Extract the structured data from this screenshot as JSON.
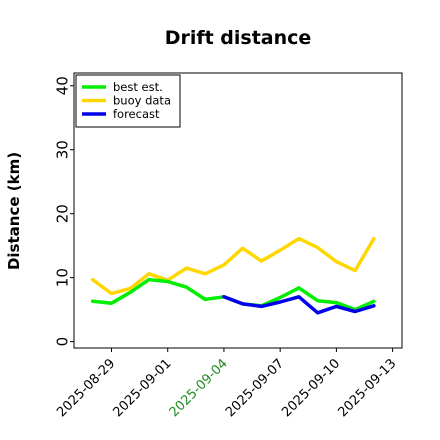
{
  "chart_data": {
    "type": "line",
    "title": "Drift distance",
    "xlabel": "",
    "ylabel": "Distance (km)",
    "ylim": [
      -1,
      42
    ],
    "yticks": [
      "0",
      "10",
      "20",
      "30",
      "40"
    ],
    "xlim": [
      "2025-08-27",
      "2025-09-13T12:00"
    ],
    "xticks": [
      "2025-08-29",
      "2025-09-01",
      "2025-09-04",
      "2025-09-07",
      "2025-09-10",
      "2025-09-13"
    ],
    "highlight_tick": "2025-09-04",
    "highlight_color": "#228B22",
    "legend_position": "top-left",
    "grid": false,
    "series": [
      {
        "name": "best est.",
        "color": "#00ee00",
        "x": [
          "2025-08-28",
          "2025-08-29",
          "2025-08-30",
          "2025-08-31",
          "2025-09-01",
          "2025-09-02",
          "2025-09-03",
          "2025-09-04",
          "2025-09-05",
          "2025-09-06",
          "2025-09-07",
          "2025-09-08",
          "2025-09-09",
          "2025-09-10",
          "2025-09-11",
          "2025-09-12"
        ],
        "values": [
          6.3,
          6.0,
          7.7,
          9.7,
          9.4,
          8.5,
          6.6,
          7.0,
          5.9,
          5.6,
          6.9,
          8.4,
          6.4,
          6.1,
          5.0,
          6.3
        ]
      },
      {
        "name": "buoy data",
        "color": "#ffd700",
        "x": [
          "2025-08-28",
          "2025-08-29",
          "2025-08-30",
          "2025-08-31",
          "2025-09-01",
          "2025-09-02",
          "2025-09-03",
          "2025-09-04",
          "2025-09-05",
          "2025-09-06",
          "2025-09-07",
          "2025-09-08",
          "2025-09-09",
          "2025-09-10",
          "2025-09-11",
          "2025-09-12"
        ],
        "values": [
          9.7,
          7.5,
          8.3,
          10.6,
          9.6,
          11.5,
          10.6,
          12.0,
          14.6,
          12.6,
          14.3,
          16.1,
          14.7,
          12.5,
          11.1,
          16.1
        ]
      },
      {
        "name": "forecast",
        "color": "#0000ee",
        "x": [
          "2025-09-04",
          "2025-09-05",
          "2025-09-06",
          "2025-09-07",
          "2025-09-08",
          "2025-09-09",
          "2025-09-10",
          "2025-09-11",
          "2025-09-12"
        ],
        "values": [
          7.0,
          5.9,
          5.5,
          6.2,
          7.0,
          4.5,
          5.5,
          4.7,
          5.6
        ]
      }
    ]
  }
}
